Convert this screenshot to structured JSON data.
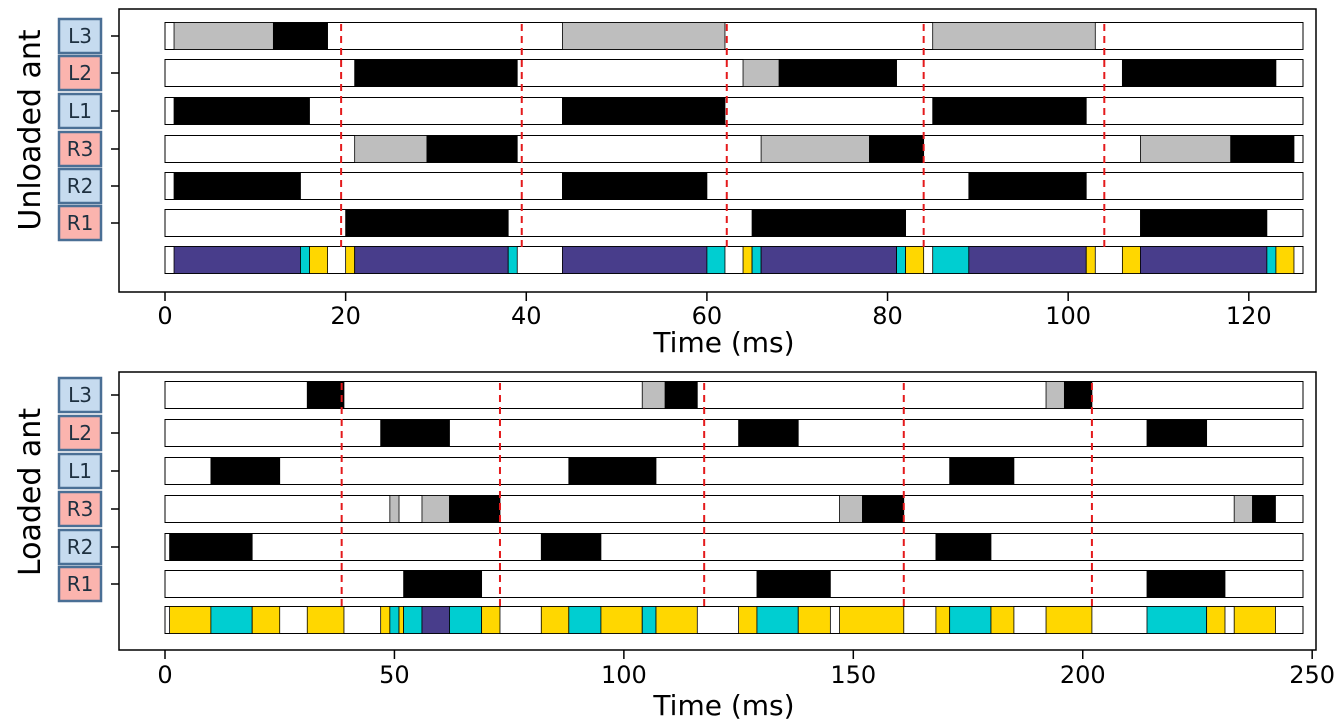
{
  "colors": {
    "stance": "#000000",
    "swing_contact": "#bebebe",
    "legend_left": "#c6dbef",
    "legend_right": "#fbb4ae",
    "legend_border": "#4a6f95",
    "marker": "#e41a1c",
    "combo_purple": "#483d8b",
    "combo_cyan": "#00ced1",
    "combo_yellow": "#ffd700"
  },
  "chart_data": [
    {
      "type": "gantt",
      "ylabel": "Unloaded ant",
      "xlabel": "Time (ms)",
      "xlim": [
        0,
        126
      ],
      "xticks": [
        0,
        20,
        40,
        60,
        80,
        100,
        120
      ],
      "legs": [
        {
          "label": "L3",
          "side": "left",
          "stance": [
            [
              12,
              18
            ]
          ],
          "gray": [
            [
              1,
              12
            ],
            [
              44,
              62
            ],
            [
              85,
              103
            ]
          ]
        },
        {
          "label": "L2",
          "side": "right",
          "stance": [
            [
              21,
              39
            ],
            [
              68,
              81
            ],
            [
              106,
              123
            ]
          ],
          "gray": [
            [
              64,
              68
            ]
          ]
        },
        {
          "label": "L1",
          "side": "left",
          "stance": [
            [
              1,
              16
            ],
            [
              44,
              62
            ],
            [
              85,
              102
            ]
          ],
          "gray": []
        },
        {
          "label": "R3",
          "side": "right",
          "stance": [
            [
              29,
              39
            ],
            [
              78,
              84
            ],
            [
              118,
              125
            ]
          ],
          "gray": [
            [
              21,
              29
            ],
            [
              66,
              78
            ],
            [
              108,
              118
            ]
          ]
        },
        {
          "label": "R2",
          "side": "left",
          "stance": [
            [
              1,
              15
            ],
            [
              44,
              60
            ],
            [
              89,
              102
            ]
          ],
          "gray": []
        },
        {
          "label": "R1",
          "side": "right",
          "stance": [
            [
              20,
              38
            ],
            [
              65,
              82
            ],
            [
              108,
              122
            ]
          ],
          "gray": []
        }
      ],
      "combined": [
        {
          "start": 1,
          "end": 15,
          "color": "purple"
        },
        {
          "start": 15,
          "end": 16,
          "color": "cyan"
        },
        {
          "start": 16,
          "end": 18,
          "color": "yellow"
        },
        {
          "start": 20,
          "end": 21,
          "color": "yellow"
        },
        {
          "start": 21,
          "end": 38,
          "color": "purple"
        },
        {
          "start": 38,
          "end": 39,
          "color": "cyan"
        },
        {
          "start": 44,
          "end": 60,
          "color": "purple"
        },
        {
          "start": 60,
          "end": 62,
          "color": "cyan"
        },
        {
          "start": 64,
          "end": 65,
          "color": "yellow"
        },
        {
          "start": 65,
          "end": 66,
          "color": "cyan"
        },
        {
          "start": 66,
          "end": 81,
          "color": "purple"
        },
        {
          "start": 81,
          "end": 82,
          "color": "cyan"
        },
        {
          "start": 82,
          "end": 84,
          "color": "yellow"
        },
        {
          "start": 85,
          "end": 89,
          "color": "cyan"
        },
        {
          "start": 89,
          "end": 102,
          "color": "purple"
        },
        {
          "start": 102,
          "end": 103,
          "color": "yellow"
        },
        {
          "start": 106,
          "end": 108,
          "color": "yellow"
        },
        {
          "start": 108,
          "end": 122,
          "color": "purple"
        },
        {
          "start": 122,
          "end": 123,
          "color": "cyan"
        },
        {
          "start": 123,
          "end": 125,
          "color": "yellow"
        }
      ],
      "markers": [
        19.5,
        39.5,
        62.2,
        84,
        104
      ]
    },
    {
      "type": "gantt",
      "ylabel": "Loaded ant",
      "xlabel": "Time (ms)",
      "xlim": [
        0,
        248
      ],
      "xticks": [
        0,
        50,
        100,
        150,
        200,
        250
      ],
      "legs": [
        {
          "label": "L3",
          "side": "left",
          "stance": [
            [
              31,
              39
            ],
            [
              109,
              116
            ],
            [
              196,
              202
            ]
          ],
          "gray": [
            [
              104,
              109
            ],
            [
              192,
              196
            ]
          ]
        },
        {
          "label": "L2",
          "side": "right",
          "stance": [
            [
              47,
              62
            ],
            [
              125,
              138
            ],
            [
              214,
              227
            ]
          ],
          "gray": []
        },
        {
          "label": "L1",
          "side": "left",
          "stance": [
            [
              10,
              25
            ],
            [
              88,
              107
            ],
            [
              171,
              185
            ]
          ],
          "gray": []
        },
        {
          "label": "R3",
          "side": "right",
          "stance": [
            [
              62,
              73
            ],
            [
              152,
              161
            ],
            [
              237,
              242
            ]
          ],
          "gray": [
            [
              49,
              51
            ],
            [
              56,
              62
            ],
            [
              147,
              152
            ],
            [
              233,
              237
            ]
          ]
        },
        {
          "label": "R2",
          "side": "left",
          "stance": [
            [
              1,
              19
            ],
            [
              82,
              95
            ],
            [
              168,
              180
            ]
          ],
          "gray": []
        },
        {
          "label": "R1",
          "side": "right",
          "stance": [
            [
              52,
              69
            ],
            [
              129,
              145
            ],
            [
              214,
              231
            ]
          ],
          "gray": []
        }
      ],
      "combined": [
        {
          "start": 1,
          "end": 10,
          "color": "yellow"
        },
        {
          "start": 10,
          "end": 19,
          "color": "cyan"
        },
        {
          "start": 19,
          "end": 25,
          "color": "yellow"
        },
        {
          "start": 31,
          "end": 39,
          "color": "yellow"
        },
        {
          "start": 47,
          "end": 49,
          "color": "yellow"
        },
        {
          "start": 49,
          "end": 51,
          "color": "cyan"
        },
        {
          "start": 51,
          "end": 52,
          "color": "yellow"
        },
        {
          "start": 52,
          "end": 56,
          "color": "cyan"
        },
        {
          "start": 56,
          "end": 62,
          "color": "purple"
        },
        {
          "start": 62,
          "end": 69,
          "color": "cyan"
        },
        {
          "start": 69,
          "end": 73,
          "color": "yellow"
        },
        {
          "start": 82,
          "end": 88,
          "color": "yellow"
        },
        {
          "start": 88,
          "end": 95,
          "color": "cyan"
        },
        {
          "start": 95,
          "end": 104,
          "color": "yellow"
        },
        {
          "start": 104,
          "end": 107,
          "color": "cyan"
        },
        {
          "start": 107,
          "end": 116,
          "color": "yellow"
        },
        {
          "start": 125,
          "end": 129,
          "color": "yellow"
        },
        {
          "start": 129,
          "end": 138,
          "color": "cyan"
        },
        {
          "start": 138,
          "end": 145,
          "color": "yellow"
        },
        {
          "start": 147,
          "end": 161,
          "color": "yellow"
        },
        {
          "start": 168,
          "end": 171,
          "color": "yellow"
        },
        {
          "start": 171,
          "end": 180,
          "color": "cyan"
        },
        {
          "start": 180,
          "end": 185,
          "color": "yellow"
        },
        {
          "start": 192,
          "end": 202,
          "color": "yellow"
        },
        {
          "start": 214,
          "end": 227,
          "color": "cyan"
        },
        {
          "start": 227,
          "end": 231,
          "color": "yellow"
        },
        {
          "start": 233,
          "end": 242,
          "color": "yellow"
        }
      ],
      "markers": [
        38.5,
        73,
        117.5,
        161,
        202
      ]
    }
  ]
}
